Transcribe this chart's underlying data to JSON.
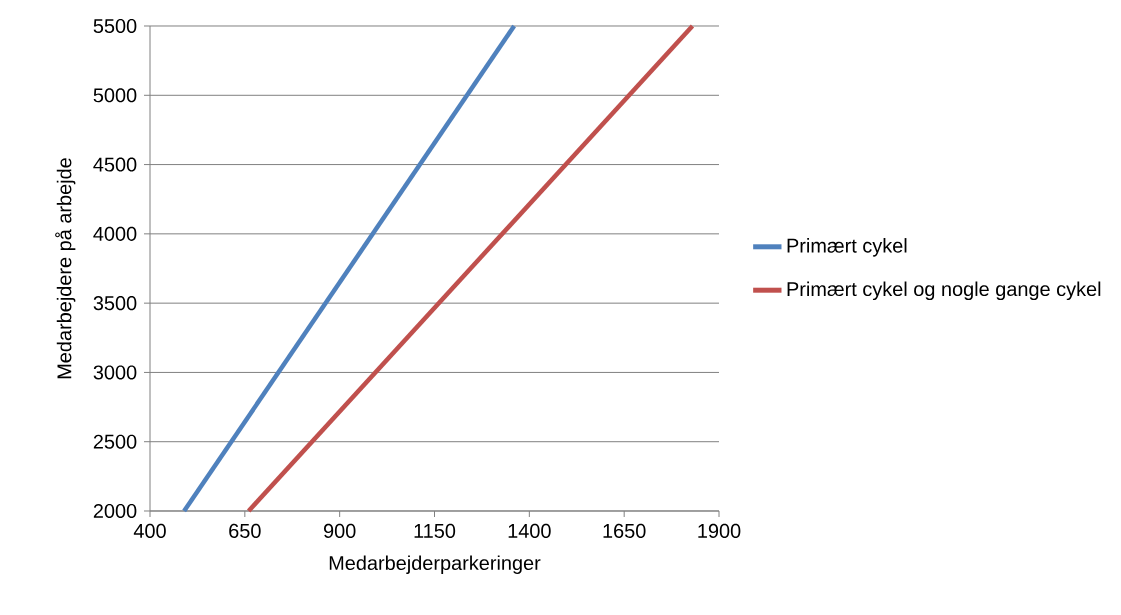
{
  "chart_data": {
    "type": "line",
    "xlabel": "Medarbejderparkeringer",
    "ylabel": "Medarbejdere på arbejde",
    "series": [
      {
        "name": "Primært cykel",
        "color": "#4f81bd",
        "x": [
          490,
          1360
        ],
        "values": [
          2000,
          5500
        ]
      },
      {
        "name": "Primært cykel og nogle gange cykel",
        "color": "#c0504d",
        "x": [
          660,
          1830
        ],
        "values": [
          2000,
          5500
        ]
      }
    ],
    "xlim": [
      400,
      1900
    ],
    "xticks": [
      400,
      650,
      900,
      1150,
      1400,
      1650,
      1900
    ],
    "ylim": [
      2000,
      5500
    ],
    "yticks": [
      2000,
      2500,
      3000,
      3500,
      4000,
      4500,
      5000,
      5500
    ],
    "grid": "y",
    "legend": "right",
    "marker": "none",
    "line_style": "solid"
  }
}
